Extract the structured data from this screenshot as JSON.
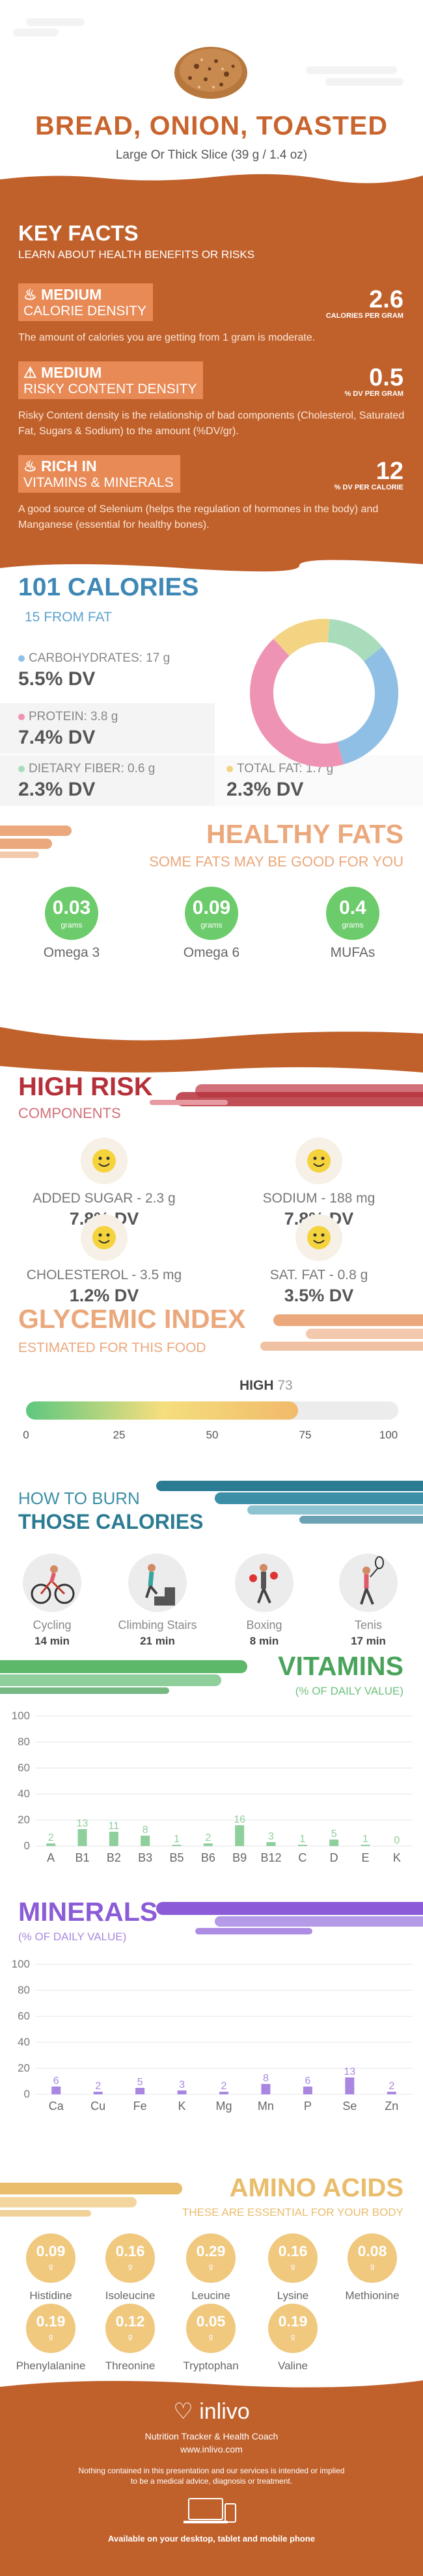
{
  "header": {
    "title": "BREAD, ONION, TOASTED",
    "subtitle": "Large Or Thick Slice (39 g / 1.4 oz)",
    "image_icon": "toasted-bread-image"
  },
  "key_facts": {
    "title": "KEY FACTS",
    "subtitle": "LEARN ABOUT HEALTH BENEFITS OR RISKS",
    "items": [
      {
        "icon": "flame-icon",
        "label1": "MEDIUM",
        "label2": "CALORIE DENSITY",
        "value": "2.6",
        "unit": "CALORIES PER GRAM",
        "description": "The amount of calories you are getting from 1 gram is moderate."
      },
      {
        "icon": "warning-icon",
        "label1": "MEDIUM",
        "label2": "RISKY CONTENT DENSITY",
        "value": "0.5",
        "unit": "% DV PER GRAM",
        "description": "Risky Content density is the relationship of bad components (Cholesterol, Saturated Fat, Sugars & Sodium) to the amount (%DV/gr)."
      },
      {
        "icon": "flame-icon",
        "label1": "RICH IN",
        "label2": "VITAMINS & MINERALS",
        "value": "12",
        "unit": "% DV PER CALORIE",
        "description": "A good source of Selenium (helps the regulation of hormones in the body) and Manganese (essential for healthy bones)."
      }
    ]
  },
  "calories": {
    "title": "101 CALORIES",
    "subtitle": "15 FROM FAT",
    "nutrients": [
      {
        "label": "CARBOHYDRATES: 17 g",
        "dv": "5.5% DV",
        "color": "#8fbfe4",
        "percent": 5.5
      },
      {
        "label": "PROTEIN: 3.8 g",
        "dv": "7.4% DV",
        "color": "#ef93b5",
        "percent": 7.4
      },
      {
        "label": "DIETARY FIBER: 0.6 g",
        "dv": "2.3% DV",
        "color": "#a8dcbb",
        "percent": 2.3
      },
      {
        "label": "TOTAL FAT: 1.7 g",
        "dv": "2.3% DV",
        "color": "#f3d483",
        "percent": 2.3
      }
    ]
  },
  "healthy_fats": {
    "title": "HEALTHY FATS",
    "subtitle": "SOME FATS MAY BE GOOD FOR YOU",
    "items": [
      {
        "value": "0.03",
        "unit": "grams",
        "name": "Omega 3"
      },
      {
        "value": "0.09",
        "unit": "grams",
        "name": "Omega 6"
      },
      {
        "value": "0.4",
        "unit": "grams",
        "name": "MUFAs"
      }
    ]
  },
  "high_risk": {
    "title": "HIGH RISK",
    "subtitle": "COMPONENTS",
    "items": [
      {
        "label": "ADDED SUGAR - 2.3 g",
        "dv": "7.8% DV"
      },
      {
        "label": "SODIUM - 188 mg",
        "dv": "7.8% DV"
      },
      {
        "label": "CHOLESTEROL - 3.5 mg",
        "dv": "1.2% DV"
      },
      {
        "label": "SAT. FAT - 0.8 g",
        "dv": "3.5% DV"
      }
    ]
  },
  "glycemic": {
    "title": "GLYCEMIC INDEX",
    "subtitle": "ESTIMATED FOR THIS FOOD",
    "level": "HIGH",
    "value": "73",
    "value_num": 73,
    "ticks": [
      "0",
      "25",
      "50",
      "75",
      "100"
    ]
  },
  "burn": {
    "title1": "HOW TO BURN",
    "title2": "THOSE CALORIES",
    "activities": [
      {
        "icon": "cycling-icon",
        "name": "Cycling",
        "time": "14 min"
      },
      {
        "icon": "climbing-stairs-icon",
        "name": "Climbing Stairs",
        "time": "21 min"
      },
      {
        "icon": "boxing-icon",
        "name": "Boxing",
        "time": "8 min"
      },
      {
        "icon": "tennis-icon",
        "name": "Tenis",
        "time": "17 min"
      }
    ]
  },
  "vitamins_header": {
    "title": "VITAMINS",
    "subtitle": "(% OF DAILY VALUE)"
  },
  "minerals_header": {
    "title": "MINERALS",
    "subtitle": "(% OF DAILY VALUE)"
  },
  "chart_data": [
    {
      "type": "bar",
      "categories": [
        "A",
        "B1",
        "B2",
        "B3",
        "B5",
        "B6",
        "B9",
        "B12",
        "C",
        "D",
        "E",
        "K"
      ],
      "values": [
        2,
        13,
        11,
        8,
        1,
        2,
        16,
        3,
        1,
        5,
        1,
        0
      ],
      "ylim": [
        0,
        100
      ],
      "yticks": [
        "0",
        "20",
        "40",
        "60",
        "80",
        "100"
      ],
      "color": "#8ecf9b",
      "grid": true
    },
    {
      "type": "bar",
      "categories": [
        "Ca",
        "Cu",
        "Fe",
        "K",
        "Mg",
        "Mn",
        "P",
        "Se",
        "Zn"
      ],
      "values": [
        6,
        2,
        5,
        3,
        2,
        8,
        6,
        13,
        2
      ],
      "ylim": [
        0,
        100
      ],
      "yticks": [
        "0",
        "20",
        "40",
        "60",
        "80",
        "100"
      ],
      "color": "#a987e0",
      "grid": true
    }
  ],
  "amino": {
    "title": "AMINO ACIDS",
    "subtitle": "THESE ARE ESSENTIAL FOR YOUR BODY",
    "items": [
      {
        "value": "0.09",
        "unit": "g",
        "name": "Histidine"
      },
      {
        "value": "0.16",
        "unit": "g",
        "name": "Isoleucine"
      },
      {
        "value": "0.29",
        "unit": "g",
        "name": "Leucine"
      },
      {
        "value": "0.16",
        "unit": "g",
        "name": "Lysine"
      },
      {
        "value": "0.08",
        "unit": "g",
        "name": "Methionine"
      },
      {
        "value": "0.19",
        "unit": "g",
        "name": "Phenylalanine"
      },
      {
        "value": "0.12",
        "unit": "g",
        "name": "Threonine"
      },
      {
        "value": "0.05",
        "unit": "g",
        "name": "Tryptophan"
      },
      {
        "value": "0.19",
        "unit": "g",
        "name": "Valine"
      }
    ]
  },
  "footer": {
    "brand": "inlivo",
    "tagline": "Nutrition Tracker & Health Coach",
    "url": "www.inlivo.com",
    "disclaimer1": "Nothing contained in this presentation and our services is intended or implied",
    "disclaimer2": "to be a medical advice, diagnosis or treatment.",
    "devices": "Available on your desktop, tablet and mobile phone"
  }
}
